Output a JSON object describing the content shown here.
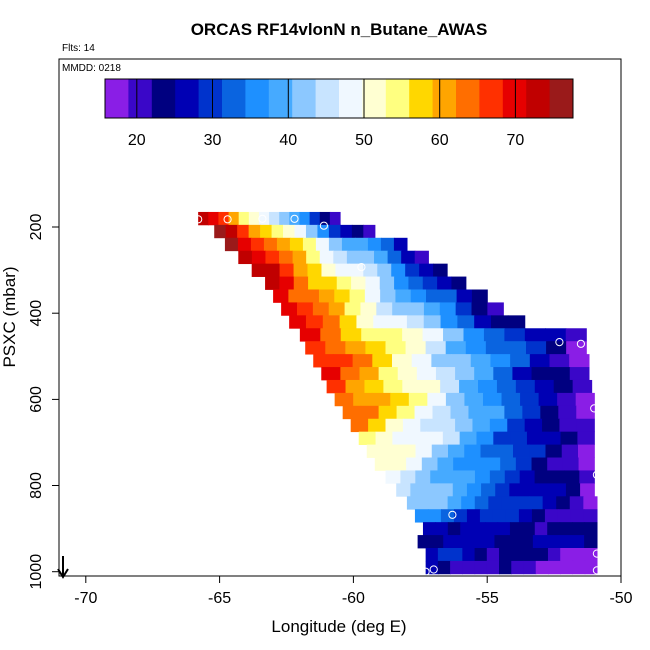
{
  "chart_data": {
    "type": "heatmap",
    "title": "ORCAS RF14vlonN n_Butane_AWAS",
    "subtitle_flts": "Flts: 14",
    "subtitle_mmdd": "MMDD: 0218",
    "xlabel": "Longitude (deg E)",
    "ylabel": "PSXC (mbar)",
    "xlim": [
      -71,
      -50
    ],
    "ylim": [
      1010,
      -190
    ],
    "x_ticks": [
      -70,
      -65,
      -60,
      -55,
      -50
    ],
    "x_tick_labels": [
      "-70",
      "-65",
      "-60",
      "-55",
      "-50"
    ],
    "y_ticks": [
      200,
      400,
      600,
      800,
      1000
    ],
    "y_tick_labels": [
      "200",
      "400",
      "600",
      "800",
      "1000"
    ],
    "colorbar": {
      "range": [
        15.8,
        77.6
      ],
      "ticks": [
        20,
        30,
        40,
        50,
        60,
        70
      ],
      "tick_labels": [
        "20",
        "30",
        "40",
        "50",
        "60",
        "70"
      ],
      "colors": [
        "#8a1ee6",
        "#3a07c8",
        "#000080",
        "#0000b4",
        "#0033cc",
        "#0a64e0",
        "#1e90ff",
        "#46aaff",
        "#8cc8ff",
        "#c8e4ff",
        "#f0f8ff",
        "#ffffd2",
        "#ffff80",
        "#ffd700",
        "#ffa500",
        "#ff6e00",
        "#ff3000",
        "#e60000",
        "#c00000",
        "#9a1a1a"
      ]
    },
    "bands": [
      {
        "p": 180,
        "x0": -65.8,
        "x1": -60.5,
        "vstart": 74,
        "vend": 20
      },
      {
        "p": 210,
        "x0": -65.2,
        "x1": -59.2,
        "vstart": 77,
        "vend": 18
      },
      {
        "p": 240,
        "x0": -64.8,
        "x1": -58.0,
        "vstart": 77,
        "vend": 25
      },
      {
        "p": 270,
        "x0": -64.3,
        "x1": -57.2,
        "vstart": 76,
        "vend": 22
      },
      {
        "p": 300,
        "x0": -63.8,
        "x1": -56.5,
        "vstart": 75,
        "vend": 22
      },
      {
        "p": 330,
        "x0": -63.3,
        "x1": -55.8,
        "vstart": 74,
        "vend": 21
      },
      {
        "p": 360,
        "x0": -63.0,
        "x1": -55.0,
        "vstart": 73,
        "vend": 20
      },
      {
        "p": 390,
        "x0": -62.7,
        "x1": -54.4,
        "vstart": 72,
        "vend": 20
      },
      {
        "p": 420,
        "x0": -62.4,
        "x1": -53.6,
        "vstart": 71,
        "vend": 20
      },
      {
        "p": 450,
        "x0": -62.0,
        "x1": -51.3,
        "vstart": 70,
        "vend": 18
      },
      {
        "p": 480,
        "x0": -61.8,
        "x1": -51.3,
        "vstart": 70,
        "vend": 17
      },
      {
        "p": 510,
        "x0": -61.5,
        "x1": -51.2,
        "vstart": 70,
        "vend": 17
      },
      {
        "p": 540,
        "x0": -61.2,
        "x1": -51.2,
        "vstart": 69,
        "vend": 17
      },
      {
        "p": 570,
        "x0": -61.0,
        "x1": -51.1,
        "vstart": 68,
        "vend": 17
      },
      {
        "p": 600,
        "x0": -60.7,
        "x1": -51.0,
        "vstart": 68,
        "vend": 16
      },
      {
        "p": 630,
        "x0": -60.4,
        "x1": -51.0,
        "vstart": 66,
        "vend": 16
      },
      {
        "p": 660,
        "x0": -60.1,
        "x1": -51.0,
        "vstart": 62,
        "vend": 16
      },
      {
        "p": 690,
        "x0": -59.8,
        "x1": -51.0,
        "vstart": 58,
        "vend": 17
      },
      {
        "p": 720,
        "x0": -59.5,
        "x1": -51.0,
        "vstart": 55,
        "vend": 17
      },
      {
        "p": 750,
        "x0": -59.2,
        "x1": -51.0,
        "vstart": 52,
        "vend": 17
      },
      {
        "p": 780,
        "x0": -58.8,
        "x1": -51.0,
        "vstart": 48,
        "vend": 18
      },
      {
        "p": 810,
        "x0": -58.4,
        "x1": -51.0,
        "vstart": 47,
        "vend": 18
      },
      {
        "p": 840,
        "x0": -58.0,
        "x1": -50.9,
        "vstart": 45,
        "vend": 19
      },
      {
        "p": 870,
        "x0": -57.7,
        "x1": -50.9,
        "vstart": 35,
        "vend": 20
      },
      {
        "p": 900,
        "x0": -57.4,
        "x1": -50.9,
        "vstart": 28,
        "vend": 22
      },
      {
        "p": 930,
        "x0": -57.6,
        "x1": -50.9,
        "vstart": 26,
        "vend": 26
      },
      {
        "p": 960,
        "x0": -57.3,
        "x1": -50.9,
        "vstart": 28,
        "vend": 18
      },
      {
        "p": 990,
        "x0": -57.3,
        "x1": -50.9,
        "vstart": 24,
        "vend": 16
      }
    ],
    "sample_points": [
      {
        "x": -65.8,
        "p": 182
      },
      {
        "x": -64.7,
        "p": 182
      },
      {
        "x": -63.4,
        "p": 181
      },
      {
        "x": -62.2,
        "p": 181
      },
      {
        "x": -61.1,
        "p": 197
      },
      {
        "x": -59.7,
        "p": 293
      },
      {
        "x": -52.3,
        "p": 467
      },
      {
        "x": -51.5,
        "p": 471
      },
      {
        "x": -51.0,
        "p": 621
      },
      {
        "x": -50.9,
        "p": 775
      },
      {
        "x": -56.3,
        "p": 868
      },
      {
        "x": -50.9,
        "p": 958
      },
      {
        "x": -57.3,
        "p": 1000
      },
      {
        "x": -57.0,
        "p": 995
      },
      {
        "x": -50.9,
        "p": 997
      }
    ],
    "direction_indicator": "down-arrow"
  }
}
